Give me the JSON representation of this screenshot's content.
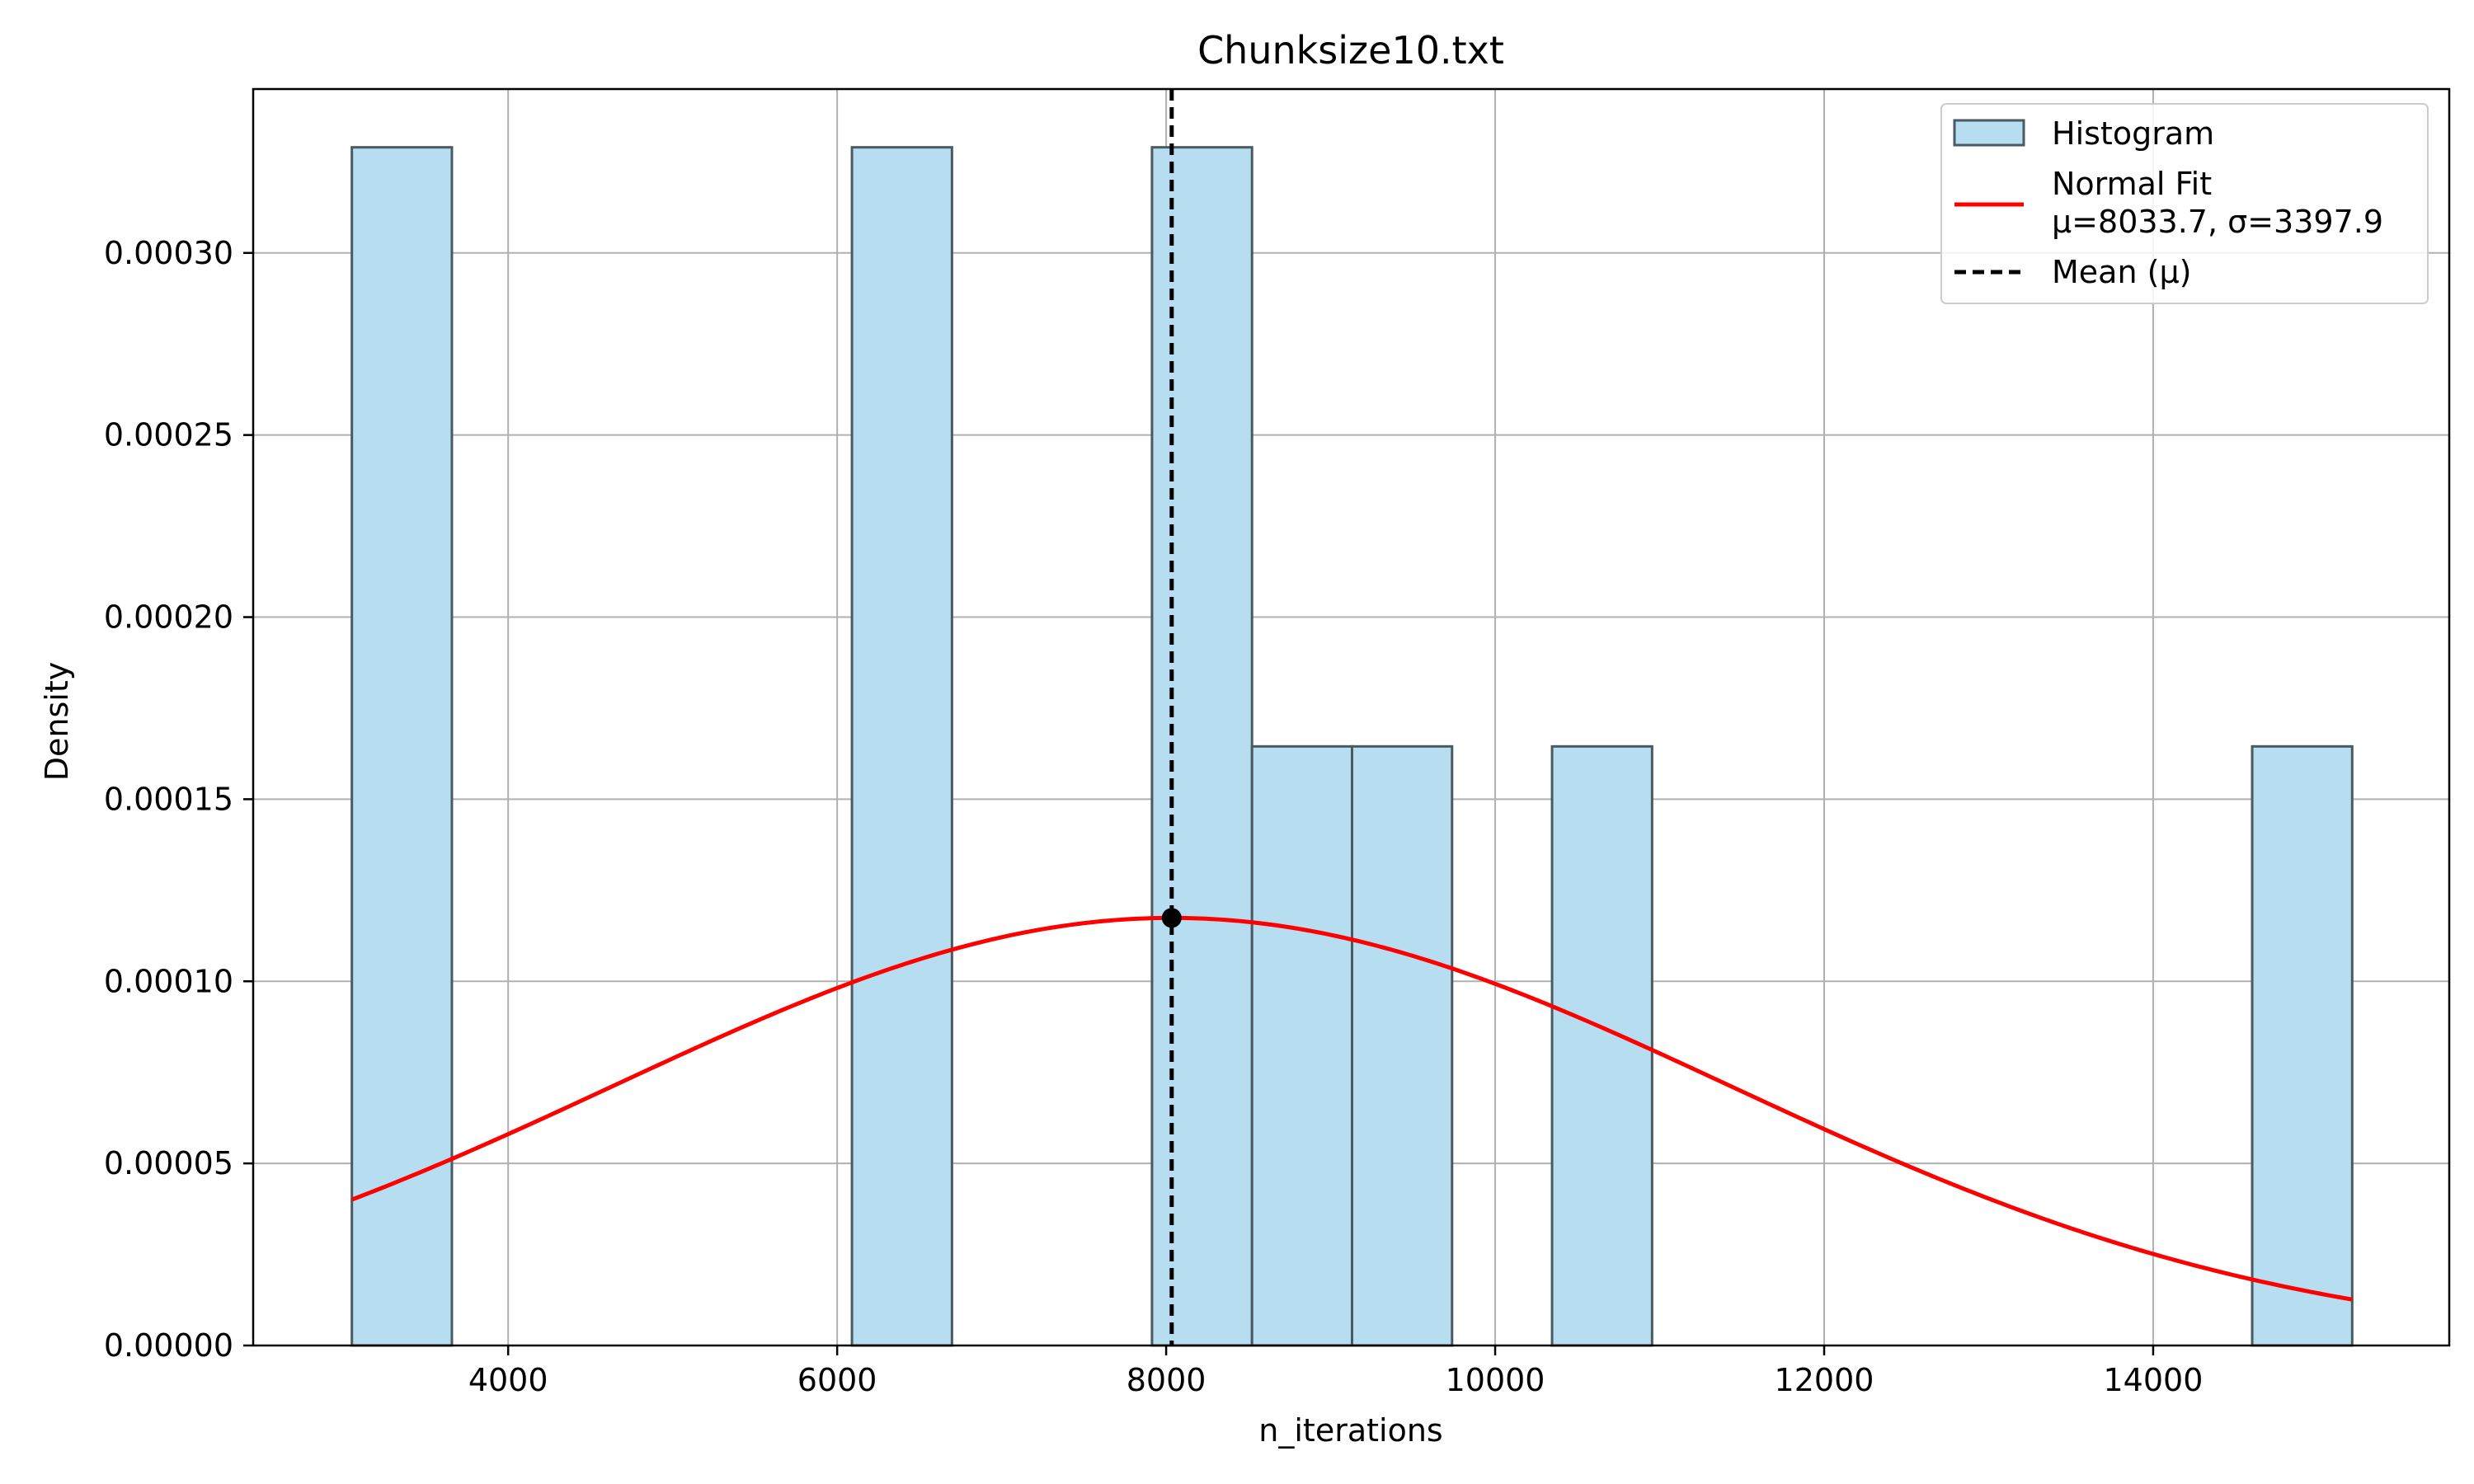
{
  "chart_data": {
    "type": "bar",
    "title": "Chunksize10.txt",
    "xlabel": "n_iterations",
    "ylabel": "Density",
    "xlim": [
      2450,
      15800
    ],
    "ylim": [
      0,
      0.000345
    ],
    "grid": true,
    "x_ticks": [
      4000,
      6000,
      8000,
      10000,
      12000,
      14000
    ],
    "x_tick_labels": [
      "4000",
      "6000",
      "8000",
      "10000",
      "12000",
      "14000"
    ],
    "y_ticks": [
      0,
      5e-05,
      0.0001,
      0.00015,
      0.0002,
      0.00025,
      0.0003
    ],
    "y_tick_labels": [
      "0.00000",
      "0.00005",
      "0.00010",
      "0.00015",
      "0.00020",
      "0.00025",
      "0.00030"
    ],
    "bins": [
      {
        "x0": 3050,
        "x1": 3658,
        "density": 0.000329
      },
      {
        "x0": 6090,
        "x1": 6698,
        "density": 0.000329
      },
      {
        "x0": 7914,
        "x1": 8522,
        "density": 0.000329
      },
      {
        "x0": 8522,
        "x1": 9130,
        "density": 0.0001645
      },
      {
        "x0": 9130,
        "x1": 9738,
        "density": 0.0001645
      },
      {
        "x0": 10346,
        "x1": 10954,
        "density": 0.0001645
      },
      {
        "x0": 14602,
        "x1": 15210,
        "density": 0.0001645
      }
    ],
    "normal_fit": {
      "mu": 8033.7,
      "sigma": 3397.9,
      "x_start": 3050,
      "x_end": 15210
    },
    "mean_line_x": 8033.7,
    "peak_point": {
      "x": 8033.7,
      "y": 0.0001174
    },
    "colors": {
      "bar_fill": "#b7def0",
      "bar_edge": "#4a5a62",
      "fit_line": "#ff0000",
      "mean_line": "#000000",
      "grid": "#b0b0b0"
    },
    "legend": {
      "placement": "top-right",
      "entries": {
        "histogram": "Histogram",
        "fit_line1": "Normal Fit",
        "fit_line2": "μ=8033.7, σ=3397.9",
        "mean": "Mean (μ)"
      }
    }
  }
}
